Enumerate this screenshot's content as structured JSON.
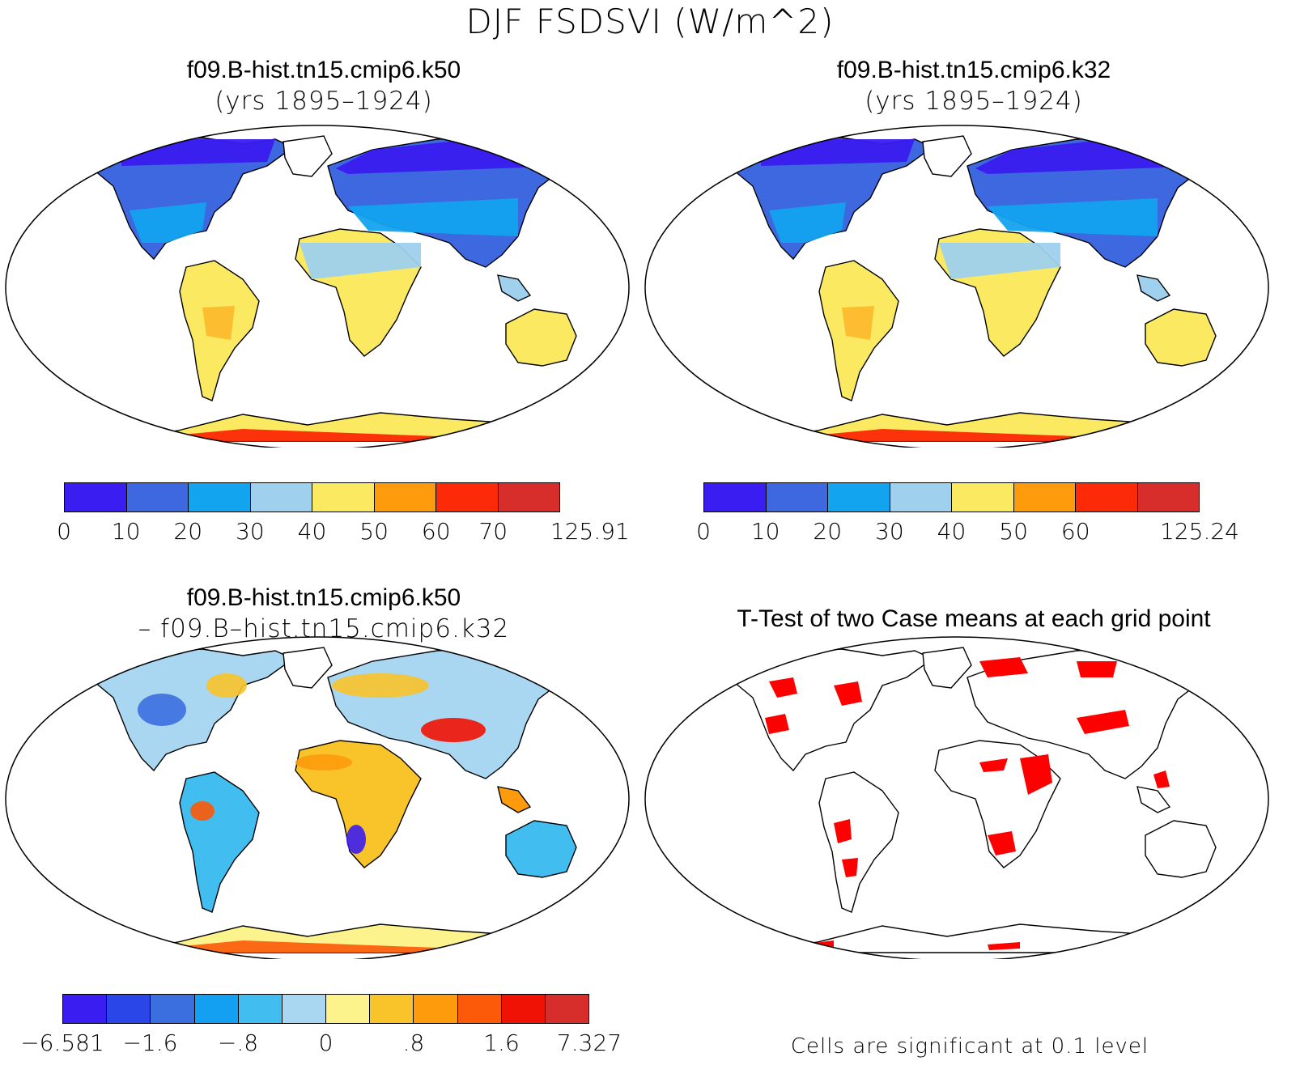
{
  "figure": {
    "title": "DJF FSDSVI (W/m^2)"
  },
  "panels": [
    {
      "title_line1": "f09.B-hist.tn15.cmip6.k50",
      "title_line2": "(yrs 1895–1924)"
    },
    {
      "title_line1": "f09.B-hist.tn15.cmip6.k32",
      "title_line2": "(yrs 1895–1924)"
    },
    {
      "title_line1": "f09.B-hist.tn15.cmip6.k50",
      "title_line2": "– f09.B–hist.tn15.cmip6.k32"
    },
    {
      "title_line1": "T-Test of two Case means at each grid point",
      "note": "Cells are significant at 0.1 level"
    }
  ],
  "colorbars": {
    "case1": {
      "colors": [
        "#3a1df0",
        "#3d68e0",
        "#13a4f0",
        "#9fd0ee",
        "#fbe961",
        "#fd9b0c",
        "#fc2a06",
        "#d72e2b"
      ],
      "labels": [
        "0",
        "10",
        "20",
        "30",
        "40",
        "50",
        "60",
        "70",
        "125.91"
      ]
    },
    "case2": {
      "colors": [
        "#3a1df0",
        "#3d68e0",
        "#13a4f0",
        "#9fd0ee",
        "#fbe961",
        "#fd9b0c",
        "#fc2a06",
        "#d72e2b"
      ],
      "labels": [
        "0",
        "10",
        "20",
        "30",
        "40",
        "50",
        "60",
        "",
        "125.24"
      ]
    },
    "diff": {
      "colors": [
        "#3a1df0",
        "#2a46e8",
        "#3b6fe0",
        "#14a0f2",
        "#42bdf0",
        "#a9d6f0",
        "#fcf38c",
        "#f8c42a",
        "#fd9b0c",
        "#fc5a09",
        "#f01204",
        "#d72e2b"
      ],
      "labels": [
        "−6.581",
        "−1.6",
        "−.8",
        "0",
        ".8",
        "1.6",
        "7.327"
      ]
    }
  },
  "map_colors": {
    "land_outline": "#000000",
    "significant": "#ff0000"
  }
}
